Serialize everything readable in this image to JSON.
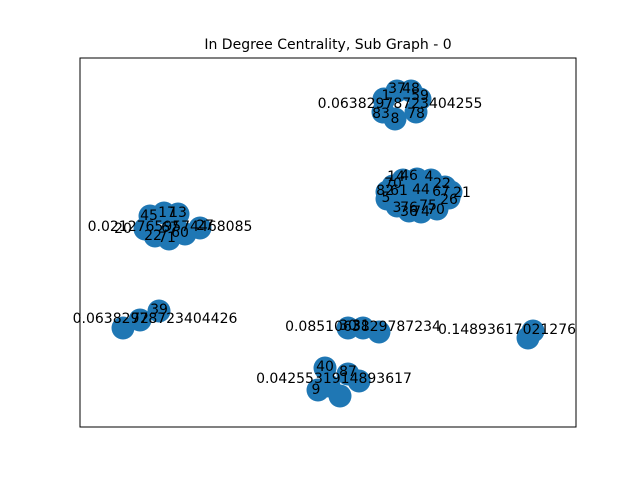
{
  "figure": {
    "title": "In Degree Centrality, Sub Graph - 0",
    "node_color": "#1f77b4",
    "clusters": [
      {
        "name": "cluster-top",
        "value_label": "0.06382978723404255",
        "node_labels": [
          "37",
          "48",
          "1",
          "59",
          "83",
          "78",
          "8"
        ]
      },
      {
        "name": "cluster-right-mid",
        "value_label": "",
        "node_labels": [
          "14",
          "46",
          "4",
          "70",
          "22",
          "82",
          "21",
          "61",
          "44",
          "67",
          "5",
          "26",
          "3",
          "76",
          "75",
          "70",
          "36",
          "74"
        ]
      },
      {
        "name": "cluster-left-mid",
        "value_label": "0.02127659574468085",
        "node_labels": [
          "45",
          "17",
          "13",
          "20",
          "67",
          "27",
          "22",
          "71",
          "60"
        ]
      },
      {
        "name": "cluster-left-low",
        "value_label": "0.06382978723404426",
        "node_labels": [
          "39",
          "72"
        ]
      },
      {
        "name": "cluster-center-low",
        "value_label": "0.0851063829787234",
        "node_labels": [
          "30",
          "31"
        ]
      },
      {
        "name": "cluster-right-low",
        "value_label": "0.14893617021276",
        "node_labels": [
          "58"
        ]
      },
      {
        "name": "cluster-bottom",
        "value_label": "0.0425531914893617",
        "node_labels": [
          "40",
          "87",
          "23",
          "9"
        ]
      }
    ]
  }
}
